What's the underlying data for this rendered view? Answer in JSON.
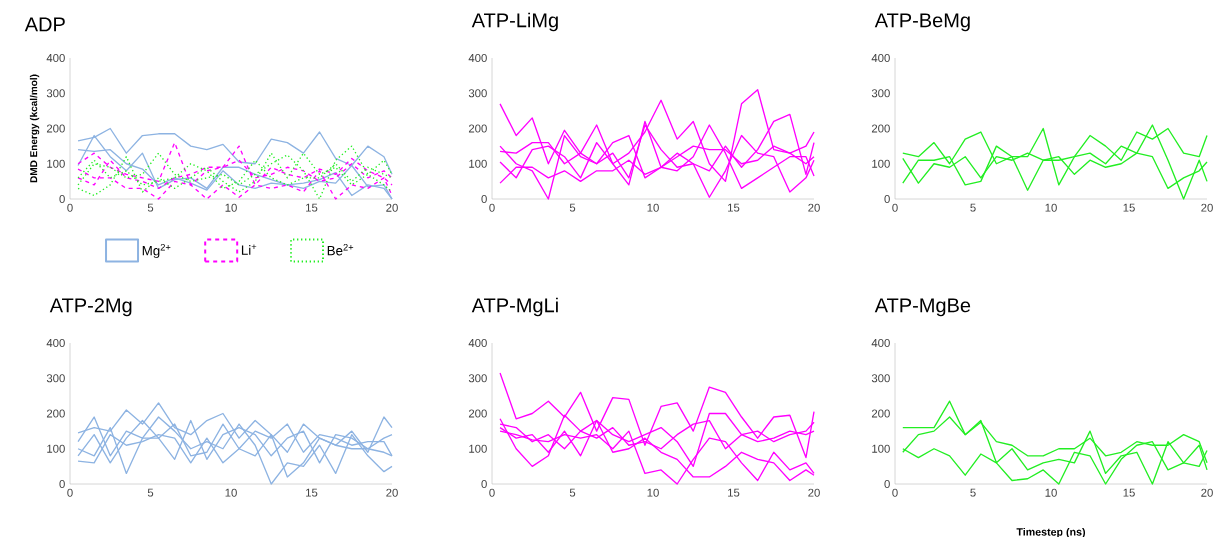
{
  "chart_data": [
    {
      "type": "line",
      "title": "ADP",
      "ylabel": "DMD Energy (kcal/mol)",
      "x": [
        0.5,
        1.5,
        2.5,
        3.5,
        4.5,
        5.5,
        6.5,
        7.5,
        8.5,
        9.5,
        10.5,
        11.5,
        12.5,
        13.5,
        14.5,
        15.5,
        16.5,
        17.5,
        18.5,
        19.5,
        20
      ],
      "xlim": [
        0,
        20
      ],
      "ylim": [
        0,
        400
      ],
      "xticks": [
        0,
        5,
        10,
        15,
        20
      ],
      "yticks": [
        0,
        100,
        200,
        300,
        400
      ],
      "legend": "bottom",
      "line_style": "solid",
      "series": [
        {
          "name": "Mg$^{2+}$",
          "color": "#8db3e2",
          "line_style": "solid",
          "values": [
            165,
            175,
            200,
            130,
            180,
            185,
            185,
            150,
            140,
            155,
            105,
            100,
            170,
            160,
            130,
            190,
            115,
            95,
            150,
            120,
            70
          ]
        },
        {
          "color": "#8db3e2",
          "line_style": "solid",
          "values": [
            140,
            135,
            140,
            100,
            85,
            40,
            60,
            45,
            25,
            80,
            40,
            30,
            45,
            40,
            45,
            55,
            75,
            10,
            40,
            30,
            0
          ]
        },
        {
          "color": "#8db3e2",
          "line_style": "solid",
          "values": [
            95,
            180,
            120,
            80,
            130,
            30,
            55,
            60,
            30,
            90,
            90,
            70,
            55,
            40,
            30,
            50,
            45,
            95,
            35,
            40,
            0
          ]
        },
        {
          "name": "Li$^{+}$",
          "color": "#ff00ff",
          "line_style": "dashed",
          "values": [
            100,
            130,
            90,
            70,
            60,
            50,
            160,
            40,
            80,
            90,
            150,
            40,
            90,
            70,
            60,
            85,
            70,
            115,
            80,
            60,
            40
          ]
        },
        {
          "color": "#ff00ff",
          "line_style": "dashed",
          "values": [
            85,
            60,
            60,
            30,
            30,
            0,
            50,
            40,
            0,
            40,
            5,
            40,
            30,
            40,
            20,
            80,
            0,
            40,
            30,
            60,
            10
          ]
        },
        {
          "color": "#ff00ff",
          "line_style": "dashed",
          "values": [
            60,
            40,
            110,
            60,
            50,
            30,
            60,
            70,
            90,
            90,
            110,
            60,
            70,
            90,
            80,
            50,
            60,
            100,
            60,
            80,
            60
          ]
        },
        {
          "name": "Be$^{2+}$",
          "color": "#22ee22",
          "line_style": "dotted",
          "values": [
            40,
            100,
            90,
            60,
            70,
            130,
            70,
            50,
            60,
            70,
            40,
            70,
            100,
            125,
            80,
            0,
            110,
            150,
            70,
            110,
            70
          ]
        },
        {
          "color": "#22ee22",
          "line_style": "dotted",
          "values": [
            60,
            110,
            60,
            80,
            40,
            50,
            60,
            100,
            80,
            30,
            50,
            110,
            60,
            40,
            60,
            60,
            100,
            50,
            90,
            70,
            60
          ]
        },
        {
          "color": "#22ee22",
          "line_style": "dotted",
          "values": [
            30,
            10,
            40,
            120,
            20,
            60,
            30,
            60,
            90,
            50,
            20,
            50,
            130,
            60,
            130,
            70,
            90,
            40,
            70,
            40,
            20
          ]
        }
      ]
    },
    {
      "type": "line",
      "title": "ATP-LiMg",
      "x": [
        0.5,
        1.5,
        2.5,
        3.5,
        4.5,
        5.5,
        6.5,
        7.5,
        8.5,
        9.5,
        10.5,
        11.5,
        12.5,
        13.5,
        14.5,
        15.5,
        16.5,
        17.5,
        18.5,
        19.5,
        20
      ],
      "xlim": [
        0,
        20
      ],
      "ylim": [
        0,
        400
      ],
      "xticks": [
        0,
        5,
        10,
        15,
        20
      ],
      "yticks": [
        0,
        100,
        200,
        300,
        400
      ],
      "line_style": "solid",
      "series": [
        {
          "color": "#ff00ff",
          "values": [
            270,
            180,
            230,
            100,
            195,
            130,
            210,
            100,
            130,
            190,
            280,
            170,
            220,
            100,
            50,
            270,
            310,
            140,
            130,
            150,
            190
          ]
        },
        {
          "color": "#ff00ff",
          "values": [
            150,
            100,
            80,
            0,
            180,
            120,
            100,
            130,
            60,
            210,
            140,
            90,
            100,
            80,
            150,
            90,
            140,
            220,
            240,
            70,
            160
          ]
        },
        {
          "color": "#ff00ff",
          "values": [
            105,
            60,
            140,
            150,
            120,
            60,
            160,
            100,
            40,
            220,
            90,
            80,
            120,
            210,
            130,
            30,
            60,
            90,
            120,
            120,
            65
          ]
        },
        {
          "color": "#ff00ff",
          "values": [
            45,
            90,
            90,
            60,
            80,
            50,
            80,
            80,
            110,
            70,
            90,
            120,
            150,
            140,
            140,
            100,
            110,
            150,
            130,
            100,
            120
          ]
        },
        {
          "color": "#ff00ff",
          "values": [
            135,
            130,
            160,
            160,
            100,
            130,
            100,
            160,
            180,
            60,
            90,
            130,
            100,
            5,
            80,
            180,
            130,
            120,
            20,
            60,
            110
          ]
        }
      ]
    },
    {
      "type": "line",
      "title": "ATP-BeMg",
      "x": [
        0.5,
        1.5,
        2.5,
        3.5,
        4.5,
        5.5,
        6.5,
        7.5,
        8.5,
        9.5,
        10.5,
        11.5,
        12.5,
        13.5,
        14.5,
        15.5,
        16.5,
        17.5,
        18.5,
        19.5,
        20
      ],
      "xlim": [
        0,
        20
      ],
      "ylim": [
        0,
        400
      ],
      "xticks": [
        0,
        5,
        10,
        15,
        20
      ],
      "yticks": [
        0,
        100,
        200,
        300,
        400
      ],
      "line_style": "solid",
      "series": [
        {
          "color": "#22ee22",
          "values": [
            130,
            120,
            160,
            100,
            170,
            190,
            100,
            120,
            120,
            200,
            40,
            120,
            180,
            150,
            110,
            190,
            170,
            200,
            130,
            120,
            180
          ]
        },
        {
          "color": "#22ee22",
          "values": [
            45,
            110,
            110,
            120,
            40,
            50,
            150,
            120,
            25,
            110,
            120,
            70,
            110,
            90,
            100,
            130,
            210,
            110,
            0,
            110,
            50
          ]
        },
        {
          "color": "#22ee22",
          "values": [
            115,
            45,
            100,
            90,
            120,
            60,
            120,
            110,
            130,
            110,
            110,
            120,
            130,
            100,
            150,
            130,
            120,
            30,
            60,
            80,
            105
          ]
        }
      ]
    },
    {
      "type": "line",
      "title": "ATP-2Mg",
      "x": [
        0.5,
        1.5,
        2.5,
        3.5,
        4.5,
        5.5,
        6.5,
        7.5,
        8.5,
        9.5,
        10.5,
        11.5,
        12.5,
        13.5,
        14.5,
        15.5,
        16.5,
        17.5,
        18.5,
        19.5,
        20
      ],
      "xlim": [
        0,
        20
      ],
      "ylim": [
        0,
        400
      ],
      "xticks": [
        0,
        5,
        10,
        15,
        20
      ],
      "yticks": [
        0,
        100,
        200,
        300,
        400
      ],
      "line_style": "solid",
      "series": [
        {
          "color": "#8db3e2",
          "values": [
            145,
            160,
            150,
            210,
            170,
            230,
            160,
            140,
            180,
            200,
            130,
            180,
            140,
            90,
            170,
            130,
            110,
            150,
            90,
            190,
            160
          ]
        },
        {
          "color": "#8db3e2",
          "values": [
            80,
            140,
            60,
            130,
            180,
            130,
            170,
            80,
            90,
            170,
            100,
            150,
            130,
            170,
            90,
            140,
            130,
            110,
            120,
            120,
            80
          ]
        },
        {
          "color": "#8db3e2",
          "values": [
            120,
            190,
            80,
            150,
            130,
            130,
            70,
            180,
            70,
            140,
            160,
            140,
            80,
            130,
            150,
            60,
            140,
            130,
            100,
            130,
            140
          ]
        },
        {
          "color": "#8db3e2",
          "values": [
            100,
            80,
            160,
            30,
            130,
            190,
            150,
            100,
            120,
            100,
            170,
            110,
            0,
            60,
            50,
            110,
            30,
            140,
            80,
            35,
            50
          ]
        },
        {
          "color": "#8db3e2",
          "values": [
            65,
            60,
            140,
            110,
            120,
            140,
            130,
            60,
            130,
            60,
            100,
            80,
            140,
            20,
            60,
            130,
            110,
            100,
            100,
            90,
            80
          ]
        }
      ]
    },
    {
      "type": "line",
      "title": "ATP-MgLi",
      "x": [
        0.5,
        1.5,
        2.5,
        3.5,
        4.5,
        5.5,
        6.5,
        7.5,
        8.5,
        9.5,
        10.5,
        11.5,
        12.5,
        13.5,
        14.5,
        15.5,
        16.5,
        17.5,
        18.5,
        19.5,
        20
      ],
      "xlim": [
        0,
        20
      ],
      "ylim": [
        0,
        400
      ],
      "xticks": [
        0,
        5,
        10,
        15,
        20
      ],
      "yticks": [
        0,
        100,
        200,
        300,
        400
      ],
      "line_style": "solid",
      "series": [
        {
          "color": "#ff00ff",
          "values": [
            315,
            185,
            200,
            235,
            190,
            260,
            150,
            245,
            240,
            110,
            220,
            230,
            150,
            275,
            260,
            190,
            130,
            190,
            195,
            75,
            205
          ]
        },
        {
          "color": "#ff00ff",
          "values": [
            185,
            100,
            50,
            80,
            195,
            150,
            180,
            140,
            120,
            140,
            160,
            120,
            50,
            200,
            200,
            140,
            150,
            120,
            140,
            150,
            175
          ]
        },
        {
          "color": "#ff00ff",
          "values": [
            170,
            160,
            120,
            140,
            100,
            150,
            130,
            160,
            110,
            120,
            100,
            140,
            170,
            180,
            100,
            140,
            120,
            130,
            150,
            140,
            150
          ]
        },
        {
          "color": "#ff00ff",
          "values": [
            150,
            140,
            125,
            120,
            140,
            130,
            140,
            100,
            150,
            30,
            40,
            0,
            70,
            130,
            120,
            60,
            10,
            90,
            40,
            60,
            30
          ]
        },
        {
          "color": "#ff00ff",
          "values": [
            160,
            130,
            140,
            90,
            150,
            80,
            180,
            90,
            100,
            130,
            90,
            70,
            20,
            20,
            50,
            90,
            70,
            60,
            10,
            40,
            25
          ]
        }
      ]
    },
    {
      "type": "line",
      "title": "ATP-MgBe",
      "xlabel": "Timestep (ns)",
      "x": [
        0.5,
        1.5,
        2.5,
        3.5,
        4.5,
        5.5,
        6.5,
        7.5,
        8.5,
        9.5,
        10.5,
        11.5,
        12.5,
        13.5,
        14.5,
        15.5,
        16.5,
        17.5,
        18.5,
        19.5,
        20
      ],
      "xlim": [
        0,
        20
      ],
      "ylim": [
        0,
        400
      ],
      "xticks": [
        0,
        5,
        10,
        15,
        20
      ],
      "yticks": [
        0,
        100,
        200,
        300,
        400
      ],
      "line_style": "solid",
      "series": [
        {
          "color": "#22ee22",
          "values": [
            160,
            160,
            160,
            235,
            140,
            175,
            120,
            110,
            80,
            80,
            100,
            100,
            130,
            80,
            90,
            120,
            110,
            110,
            140,
            120,
            60
          ]
        },
        {
          "color": "#22ee22",
          "values": [
            90,
            140,
            150,
            190,
            140,
            180,
            60,
            100,
            40,
            60,
            70,
            60,
            150,
            30,
            80,
            90,
            0,
            120,
            60,
            110,
            40
          ]
        },
        {
          "color": "#22ee22",
          "values": [
            100,
            75,
            100,
            80,
            25,
            85,
            60,
            10,
            15,
            40,
            0,
            90,
            80,
            0,
            70,
            110,
            120,
            40,
            60,
            50,
            95
          ]
        }
      ]
    }
  ]
}
